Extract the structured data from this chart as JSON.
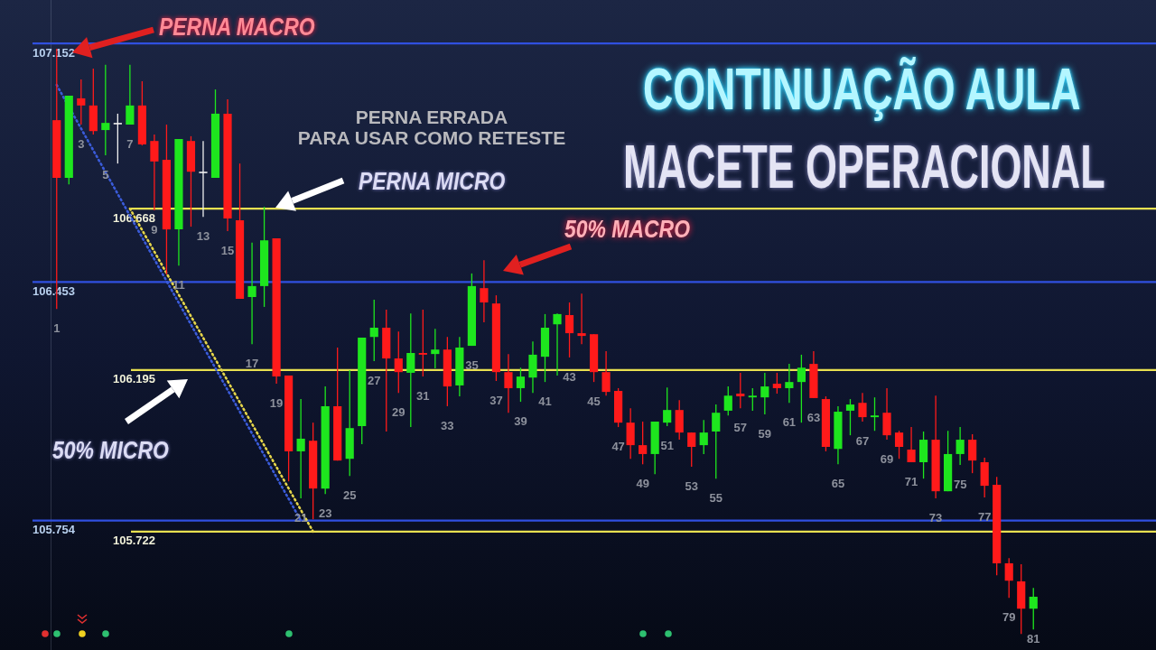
{
  "chart_data": {
    "type": "candlestick",
    "title": "CONTINUAÇÃO AULA",
    "subtitle": "MACETE OPERACIONAL",
    "categories": [
      "1",
      null,
      "3",
      null,
      "5",
      null,
      "7",
      null,
      "9",
      null,
      "11",
      null,
      "13",
      null,
      "15",
      null,
      "17",
      null,
      "19",
      null,
      "21",
      null,
      "23",
      null,
      "25",
      null,
      "27",
      null,
      "29",
      null,
      "31",
      null,
      "33",
      null,
      "35",
      null,
      "37",
      null,
      "39",
      null,
      "41",
      null,
      "43",
      null,
      "45",
      null,
      "47",
      null,
      "49",
      null,
      "51",
      null,
      "53",
      null,
      "55",
      null,
      "57",
      null,
      "59",
      null,
      "61",
      null,
      "63",
      null,
      "65",
      null,
      "67",
      null,
      "69",
      null,
      "71",
      null,
      "73",
      null,
      "75",
      null,
      "77",
      null,
      "79",
      null,
      "81"
    ],
    "ohlc": [
      [
        106.927,
        107.136,
        106.374,
        106.758
      ],
      [
        106.758,
        106.999,
        106.739,
        106.999
      ],
      [
        106.991,
        107.046,
        106.914,
        106.97
      ],
      [
        106.97,
        107.078,
        106.885,
        106.895
      ],
      [
        106.898,
        107.089,
        106.824,
        106.919
      ],
      [
        106.919,
        106.946,
        106.8,
        106.919
      ],
      [
        106.914,
        107.089,
        106.914,
        106.97
      ],
      [
        106.97,
        107.041,
        106.853,
        106.856
      ],
      [
        106.866,
        106.885,
        106.663,
        106.806
      ],
      [
        106.811,
        106.914,
        106.475,
        106.607
      ],
      [
        106.607,
        106.872,
        106.501,
        106.872
      ],
      [
        106.866,
        106.88,
        106.615,
        106.776
      ],
      [
        106.776,
        106.866,
        106.644,
        106.776
      ],
      [
        106.758,
        107.017,
        106.758,
        106.946
      ],
      [
        106.946,
        106.988,
        106.602,
        106.639
      ],
      [
        106.634,
        106.8,
        106.404,
        106.404
      ],
      [
        106.409,
        106.568,
        106.271,
        106.441
      ],
      [
        106.441,
        106.673,
        106.38,
        106.575
      ],
      [
        106.581,
        106.581,
        106.155,
        106.176
      ],
      [
        106.179,
        106.179,
        105.869,
        105.957
      ],
      [
        105.957,
        106.11,
        105.819,
        105.994
      ],
      [
        105.988,
        106.041,
        105.758,
        105.848
      ],
      [
        105.848,
        106.147,
        105.832,
        106.089
      ],
      [
        106.089,
        106.261,
        105.93,
        105.93
      ],
      [
        105.935,
        106.195,
        105.885,
        106.025
      ],
      [
        106.031,
        106.29,
        105.978,
        106.29
      ],
      [
        106.292,
        106.401,
        106.221,
        106.319
      ],
      [
        106.319,
        106.372,
        106.015,
        106.229
      ],
      [
        106.229,
        106.308,
        106.128,
        106.189
      ],
      [
        106.187,
        106.361,
        106.028,
        106.245
      ],
      [
        106.245,
        106.372,
        106.176,
        106.24
      ],
      [
        106.242,
        106.316,
        106.2,
        106.255
      ],
      [
        106.255,
        106.292,
        106.089,
        106.147
      ],
      [
        106.15,
        106.292,
        106.118,
        106.261
      ],
      [
        106.266,
        106.478,
        106.266,
        106.441
      ],
      [
        106.435,
        106.517,
        106.335,
        106.393
      ],
      [
        106.39,
        106.414,
        106.163,
        106.189
      ],
      [
        106.189,
        106.242,
        106.07,
        106.142
      ],
      [
        106.142,
        106.202,
        106.102,
        106.176
      ],
      [
        106.173,
        106.279,
        106.128,
        106.24
      ],
      [
        106.234,
        106.359,
        106.16,
        106.319
      ],
      [
        106.329,
        106.361,
        106.179,
        106.359
      ],
      [
        106.356,
        106.393,
        106.232,
        106.303
      ],
      [
        106.303,
        106.419,
        106.271,
        106.295
      ],
      [
        106.3,
        106.3,
        106.16,
        106.189
      ],
      [
        106.189,
        106.25,
        106.12,
        106.131
      ],
      [
        106.134,
        106.142,
        106.028,
        106.041
      ],
      [
        106.041,
        106.083,
        105.935,
        105.975
      ],
      [
        105.975,
        106.044,
        105.919,
        105.949
      ],
      [
        105.949,
        106.044,
        105.89,
        106.044
      ],
      [
        106.041,
        106.144,
        106.031,
        106.078
      ],
      [
        106.078,
        106.107,
        105.991,
        106.012
      ],
      [
        106.012,
        106.012,
        105.912,
        105.97
      ],
      [
        105.975,
        106.049,
        105.949,
        106.012
      ],
      [
        106.015,
        106.094,
        105.877,
        106.07
      ],
      [
        106.076,
        106.147,
        106.062,
        106.12
      ],
      [
        106.126,
        106.187,
        106.083,
        106.118
      ],
      [
        106.115,
        106.142,
        106.076,
        106.12
      ],
      [
        106.115,
        106.187,
        106.065,
        106.147
      ],
      [
        106.155,
        106.187,
        106.126,
        106.142
      ],
      [
        106.142,
        106.213,
        106.099,
        106.16
      ],
      [
        106.16,
        106.24,
        106.041,
        106.202
      ],
      [
        106.213,
        106.25,
        106.113,
        106.113
      ],
      [
        106.11,
        106.118,
        105.957,
        105.97
      ],
      [
        105.964,
        106.089,
        105.919,
        106.073
      ],
      [
        106.076,
        106.11,
        106.004,
        106.094
      ],
      [
        106.099,
        106.128,
        106.044,
        106.057
      ],
      [
        106.057,
        106.115,
        106.017,
        106.062
      ],
      [
        106.07,
        106.142,
        105.991,
        106.004
      ],
      [
        106.012,
        106.017,
        105.935,
        105.97
      ],
      [
        105.962,
        106.028,
        105.925,
        105.925
      ],
      [
        105.925,
        106.015,
        105.877,
        105.991
      ],
      [
        105.991,
        106.12,
        105.819,
        105.84
      ],
      [
        105.84,
        106.017,
        105.84,
        105.949
      ],
      [
        105.949,
        106.028,
        105.917,
        105.991
      ],
      [
        105.991,
        106.007,
        105.893,
        105.93
      ],
      [
        105.925,
        105.938,
        105.822,
        105.856
      ],
      [
        105.859,
        105.882,
        105.594,
        105.629
      ],
      [
        105.629,
        105.644,
        105.528,
        105.578
      ],
      [
        105.576,
        105.626,
        105.422,
        105.496
      ],
      [
        105.496,
        105.557,
        105.435,
        105.531
      ]
    ],
    "colors": [
      "#ff1a1a",
      "#1ee61e",
      "#ff1a1a",
      "#ff1a1a",
      "#1ee61e",
      "#f0f0f0",
      "#1ee61e",
      "#ff1a1a",
      "#ff1a1a",
      "#ff1a1a",
      "#1ee61e",
      "#ff1a1a",
      "#f0f0f0",
      "#1ee61e",
      "#ff1a1a",
      "#ff1a1a",
      "#1ee61e",
      "#1ee61e",
      "#ff1a1a",
      "#ff1a1a",
      "#1ee61e",
      "#ff1a1a",
      "#1ee61e",
      "#ff1a1a",
      "#1ee61e",
      "#1ee61e",
      "#1ee61e",
      "#ff1a1a",
      "#ff1a1a",
      "#1ee61e",
      "#ff1a1a",
      "#1ee61e",
      "#ff1a1a",
      "#1ee61e",
      "#1ee61e",
      "#ff1a1a",
      "#ff1a1a",
      "#ff1a1a",
      "#1ee61e",
      "#1ee61e",
      "#1ee61e",
      "#1ee61e",
      "#ff1a1a",
      "#ff1a1a",
      "#ff1a1a",
      "#ff1a1a",
      "#ff1a1a",
      "#ff1a1a",
      "#ff1a1a",
      "#1ee61e",
      "#1ee61e",
      "#ff1a1a",
      "#ff1a1a",
      "#1ee61e",
      "#1ee61e",
      "#1ee61e",
      "#ff1a1a",
      "#1ee61e",
      "#1ee61e",
      "#ff1a1a",
      "#1ee61e",
      "#1ee61e",
      "#ff1a1a",
      "#ff1a1a",
      "#1ee61e",
      "#1ee61e",
      "#ff1a1a",
      "#1ee61e",
      "#ff1a1a",
      "#ff1a1a",
      "#ff1a1a",
      "#1ee61e",
      "#ff1a1a",
      "#1ee61e",
      "#1ee61e",
      "#ff1a1a",
      "#ff1a1a",
      "#ff1a1a",
      "#ff1a1a",
      "#ff1a1a",
      "#1ee61e"
    ],
    "series": [
      {
        "type": "line",
        "color": "#3a5bd9",
        "line_style": "dotted",
        "values": [
          107.03,
          null,
          null,
          null,
          null,
          null,
          null,
          null,
          null,
          null,
          null,
          null,
          null,
          null,
          null,
          null,
          null,
          null,
          null,
          null,
          105.754,
          null,
          null,
          null,
          null,
          null,
          null,
          null,
          null,
          null,
          null,
          null,
          null,
          null,
          null,
          null,
          null,
          null,
          null,
          null,
          null,
          null,
          null,
          null,
          null,
          null,
          null,
          null,
          null,
          null,
          null,
          null,
          null,
          null,
          null,
          null,
          null,
          null,
          null,
          null,
          null,
          null,
          null,
          null,
          null,
          null,
          null,
          null,
          null,
          null,
          null,
          null,
          null,
          null,
          null,
          null,
          null,
          null,
          null,
          null,
          null
        ]
      },
      {
        "type": "line",
        "color": "#e6d64a",
        "line_style": "dotted",
        "values": [
          null,
          null,
          null,
          null,
          null,
          null,
          106.668,
          null,
          null,
          null,
          null,
          null,
          null,
          null,
          null,
          null,
          null,
          null,
          null,
          null,
          null,
          105.722,
          null,
          null,
          null,
          null,
          null,
          null,
          null,
          null,
          null,
          null,
          null,
          null,
          null,
          null,
          null,
          null,
          null,
          null,
          null,
          null,
          null,
          null,
          null,
          null,
          null,
          null,
          null,
          null,
          null,
          null,
          null,
          null,
          null,
          null,
          null,
          null,
          null,
          null,
          null,
          null,
          null,
          null,
          null,
          null,
          null,
          null,
          null,
          null,
          null,
          null,
          null,
          null,
          null,
          null,
          null,
          null,
          null,
          null,
          null
        ]
      }
    ],
    "ylim": [
      105.375,
      107.279
    ],
    "yticks": [
      105.754,
      106.453,
      107.152
    ],
    "y2lim": [
      105.375,
      107.279
    ],
    "y2ticks": [
      105.722,
      106.195,
      106.668
    ],
    "ref_lines": [
      {
        "axis": "y",
        "value": 107.152,
        "color": "#3050e0"
      },
      {
        "axis": "y",
        "value": 106.668,
        "color": "#e8e050"
      },
      {
        "axis": "y",
        "value": 106.453,
        "color": "#3050e0"
      },
      {
        "axis": "y",
        "value": 106.195,
        "color": "#e8e050"
      },
      {
        "axis": "y",
        "value": 105.754,
        "color": "#3050e0"
      },
      {
        "axis": "y",
        "value": 105.722,
        "color": "#e8e050"
      }
    ],
    "annotations": [
      "PERNA MACRO",
      "PERNA ERRADA\nPARA USAR COMO RETESTE",
      "PERNA MICRO",
      "50% MACRO",
      "50% MICRO"
    ]
  }
}
